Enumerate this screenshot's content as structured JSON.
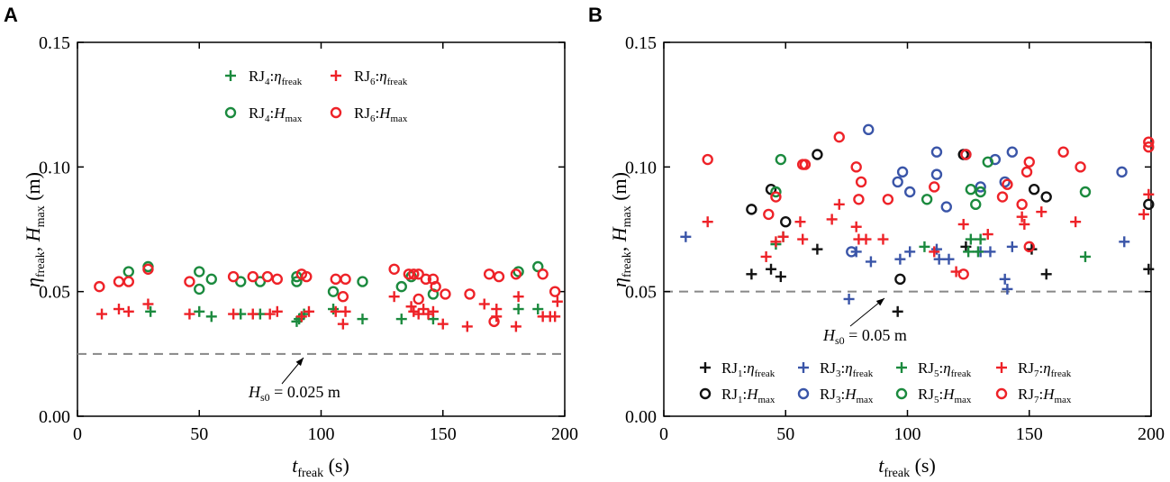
{
  "colors": {
    "RJ1": "#111111",
    "RJ3": "#3a55a8",
    "RJ4": "#1b8a3e",
    "RJ5": "#1b8a3e",
    "RJ6": "#ee2228",
    "RJ7": "#ee2228",
    "threshold": "#888888"
  },
  "chart_data": [
    {
      "type": "scatter",
      "panel_label": "A",
      "xlabel": {
        "var": "t",
        "sub": "freak",
        "unit": " (s)"
      },
      "ylabel": {
        "var1": "η",
        "sub1": "freak",
        "sep": ", ",
        "var2": "H",
        "sub2": "max",
        "unit": " (m)"
      },
      "xlim": [
        0,
        200
      ],
      "ylim": [
        0,
        0.15
      ],
      "xticks": [
        "0",
        "50",
        "100",
        "150",
        "200"
      ],
      "yticks": [
        "0.00",
        "0.05",
        "0.10",
        "0.15"
      ],
      "legend_placement": "top",
      "threshold": {
        "value": 0.025,
        "annotation": {
          "var": "H",
          "sub": "s0",
          "text": " = 0.025 m"
        }
      },
      "series": [
        {
          "name": {
            "base": "RJ",
            "num": "4",
            "sep": ":",
            "var": "η",
            "sub": "freak"
          },
          "color_key": "RJ4",
          "marker": "plus",
          "points": [
            [
              30,
              0.042
            ],
            [
              50,
              0.042
            ],
            [
              55,
              0.04
            ],
            [
              67,
              0.041
            ],
            [
              75,
              0.041
            ],
            [
              90,
              0.038
            ],
            [
              91,
              0.039
            ],
            [
              93,
              0.041
            ],
            [
              105,
              0.043
            ],
            [
              117,
              0.039
            ],
            [
              133,
              0.039
            ],
            [
              146,
              0.039
            ],
            [
              181,
              0.043
            ],
            [
              189,
              0.043
            ]
          ]
        },
        {
          "name": {
            "base": "RJ",
            "num": "6",
            "sep": ":",
            "var": "η",
            "sub": "freak"
          },
          "color_key": "RJ6",
          "marker": "plus",
          "points": [
            [
              10,
              0.041
            ],
            [
              17,
              0.043
            ],
            [
              21,
              0.042
            ],
            [
              29,
              0.045
            ],
            [
              46,
              0.041
            ],
            [
              64,
              0.041
            ],
            [
              72,
              0.041
            ],
            [
              79,
              0.041
            ],
            [
              82,
              0.042
            ],
            [
              92,
              0.04
            ],
            [
              95,
              0.042
            ],
            [
              106,
              0.042
            ],
            [
              109,
              0.037
            ],
            [
              110,
              0.042
            ],
            [
              130,
              0.048
            ],
            [
              137,
              0.044
            ],
            [
              138,
              0.042
            ],
            [
              140,
              0.041
            ],
            [
              142,
              0.043
            ],
            [
              144,
              0.041
            ],
            [
              146,
              0.042
            ],
            [
              150,
              0.037
            ],
            [
              160,
              0.036
            ],
            [
              167,
              0.045
            ],
            [
              172,
              0.043
            ],
            [
              172,
              0.04
            ],
            [
              180,
              0.036
            ],
            [
              181,
              0.048
            ],
            [
              191,
              0.04
            ],
            [
              194,
              0.04
            ],
            [
              196,
              0.04
            ],
            [
              197,
              0.046
            ]
          ]
        },
        {
          "name": {
            "base": "RJ",
            "num": "4",
            "sep": ":",
            "var": "H",
            "sub": "max"
          },
          "color_key": "RJ4",
          "marker": "circle",
          "points": [
            [
              21,
              0.058
            ],
            [
              29,
              0.06
            ],
            [
              50,
              0.058
            ],
            [
              50,
              0.051
            ],
            [
              55,
              0.055
            ],
            [
              67,
              0.054
            ],
            [
              75,
              0.054
            ],
            [
              90,
              0.056
            ],
            [
              90,
              0.054
            ],
            [
              105,
              0.05
            ],
            [
              117,
              0.054
            ],
            [
              133,
              0.052
            ],
            [
              137,
              0.056
            ],
            [
              146,
              0.049
            ],
            [
              181,
              0.058
            ],
            [
              189,
              0.06
            ]
          ]
        },
        {
          "name": {
            "base": "RJ",
            "num": "6",
            "sep": ":",
            "var": "H",
            "sub": "max"
          },
          "color_key": "RJ6",
          "marker": "circle",
          "points": [
            [
              9,
              0.052
            ],
            [
              17,
              0.054
            ],
            [
              21,
              0.054
            ],
            [
              29,
              0.059
            ],
            [
              46,
              0.054
            ],
            [
              64,
              0.056
            ],
            [
              72,
              0.056
            ],
            [
              78,
              0.056
            ],
            [
              82,
              0.055
            ],
            [
              92,
              0.057
            ],
            [
              94,
              0.056
            ],
            [
              106,
              0.055
            ],
            [
              109,
              0.048
            ],
            [
              110,
              0.055
            ],
            [
              130,
              0.059
            ],
            [
              136,
              0.057
            ],
            [
              138,
              0.057
            ],
            [
              140,
              0.047
            ],
            [
              140,
              0.057
            ],
            [
              143,
              0.055
            ],
            [
              146,
              0.055
            ],
            [
              147,
              0.052
            ],
            [
              151,
              0.049
            ],
            [
              161,
              0.049
            ],
            [
              169,
              0.057
            ],
            [
              171,
              0.038
            ],
            [
              173,
              0.056
            ],
            [
              180,
              0.057
            ],
            [
              191,
              0.057
            ],
            [
              196,
              0.05
            ]
          ]
        }
      ]
    },
    {
      "type": "scatter",
      "panel_label": "B",
      "xlabel": {
        "var": "t",
        "sub": "freak",
        "unit": " (s)"
      },
      "ylabel": {
        "var1": "η",
        "sub1": "freak",
        "sep": ", ",
        "var2": "H",
        "sub2": "max",
        "unit": " (m)"
      },
      "xlim": [
        0,
        200
      ],
      "ylim": [
        0,
        0.15
      ],
      "xticks": [
        "0",
        "50",
        "100",
        "150",
        "200"
      ],
      "yticks": [
        "0.00",
        "0.05",
        "0.10",
        "0.15"
      ],
      "legend_placement": "bottom",
      "threshold": {
        "value": 0.05,
        "annotation": {
          "var": "H",
          "sub": "s0",
          "text": " = 0.05 m"
        }
      },
      "series": [
        {
          "name": {
            "base": "RJ",
            "num": "1",
            "sep": ":",
            "var": "η",
            "sub": "freak"
          },
          "color_key": "RJ1",
          "marker": "plus",
          "points": [
            [
              36,
              0.057
            ],
            [
              44,
              0.059
            ],
            [
              48,
              0.056
            ],
            [
              63,
              0.067
            ],
            [
              96,
              0.042
            ],
            [
              124,
              0.068
            ],
            [
              151,
              0.067
            ],
            [
              157,
              0.057
            ],
            [
              199,
              0.059
            ]
          ]
        },
        {
          "name": {
            "base": "RJ",
            "num": "3",
            "sep": ":",
            "var": "η",
            "sub": "freak"
          },
          "color_key": "RJ3",
          "marker": "plus",
          "points": [
            [
              9,
              0.072
            ],
            [
              76,
              0.047
            ],
            [
              79,
              0.066
            ],
            [
              85,
              0.062
            ],
            [
              97,
              0.063
            ],
            [
              101,
              0.066
            ],
            [
              112,
              0.067
            ],
            [
              113,
              0.063
            ],
            [
              117,
              0.063
            ],
            [
              130,
              0.066
            ],
            [
              134,
              0.066
            ],
            [
              140,
              0.055
            ],
            [
              141,
              0.051
            ],
            [
              143,
              0.068
            ],
            [
              189,
              0.07
            ]
          ]
        },
        {
          "name": {
            "base": "RJ",
            "num": "5",
            "sep": ":",
            "var": "η",
            "sub": "freak"
          },
          "color_key": "RJ5",
          "marker": "plus",
          "points": [
            [
              46,
              0.069
            ],
            [
              49,
              0.072
            ],
            [
              107,
              0.068
            ],
            [
              126,
              0.071
            ],
            [
              130,
              0.071
            ],
            [
              125,
              0.066
            ],
            [
              129,
              0.066
            ],
            [
              173,
              0.064
            ]
          ]
        },
        {
          "name": {
            "base": "RJ",
            "num": "7",
            "sep": ":",
            "var": "η",
            "sub": "freak"
          },
          "color_key": "RJ7",
          "marker": "plus",
          "points": [
            [
              18,
              0.078
            ],
            [
              42,
              0.064
            ],
            [
              46,
              0.07
            ],
            [
              49,
              0.072
            ],
            [
              56,
              0.078
            ],
            [
              57,
              0.071
            ],
            [
              69,
              0.079
            ],
            [
              72,
              0.085
            ],
            [
              79,
              0.076
            ],
            [
              80,
              0.071
            ],
            [
              83,
              0.071
            ],
            [
              90,
              0.071
            ],
            [
              111,
              0.066
            ],
            [
              120,
              0.058
            ],
            [
              123,
              0.077
            ],
            [
              133,
              0.073
            ],
            [
              147,
              0.08
            ],
            [
              148,
              0.077
            ],
            [
              155,
              0.082
            ],
            [
              169,
              0.078
            ],
            [
              197,
              0.081
            ],
            [
              199,
              0.089
            ]
          ]
        },
        {
          "name": {
            "base": "RJ",
            "num": "1",
            "sep": ":",
            "var": "H",
            "sub": "max"
          },
          "color_key": "RJ1",
          "marker": "circle",
          "points": [
            [
              36,
              0.083
            ],
            [
              44,
              0.091
            ],
            [
              50,
              0.078
            ],
            [
              63,
              0.105
            ],
            [
              97,
              0.055
            ],
            [
              123,
              0.105
            ],
            [
              152,
              0.091
            ],
            [
              157,
              0.088
            ],
            [
              199,
              0.085
            ]
          ]
        },
        {
          "name": {
            "base": "RJ",
            "num": "3",
            "sep": ":",
            "var": "H",
            "sub": "max"
          },
          "color_key": "RJ3",
          "marker": "circle",
          "points": [
            [
              77,
              0.066
            ],
            [
              84,
              0.115
            ],
            [
              96,
              0.094
            ],
            [
              98,
              0.098
            ],
            [
              101,
              0.09
            ],
            [
              112,
              0.097
            ],
            [
              112,
              0.106
            ],
            [
              116,
              0.084
            ],
            [
              124,
              0.105
            ],
            [
              130,
              0.092
            ],
            [
              136,
              0.103
            ],
            [
              140,
              0.094
            ],
            [
              143,
              0.106
            ],
            [
              188,
              0.098
            ]
          ]
        },
        {
          "name": {
            "base": "RJ",
            "num": "5",
            "sep": ":",
            "var": "H",
            "sub": "max"
          },
          "color_key": "RJ5",
          "marker": "circle",
          "points": [
            [
              48,
              0.103
            ],
            [
              46,
              0.09
            ],
            [
              108,
              0.087
            ],
            [
              126,
              0.091
            ],
            [
              130,
              0.09
            ],
            [
              128,
              0.085
            ],
            [
              133,
              0.102
            ],
            [
              173,
              0.09
            ]
          ]
        },
        {
          "name": {
            "base": "RJ",
            "num": "7",
            "sep": ":",
            "var": "H",
            "sub": "max"
          },
          "color_key": "RJ7",
          "marker": "circle",
          "points": [
            [
              18,
              0.103
            ],
            [
              43,
              0.081
            ],
            [
              46,
              0.088
            ],
            [
              57,
              0.101
            ],
            [
              58,
              0.101
            ],
            [
              72,
              0.112
            ],
            [
              79,
              0.1
            ],
            [
              81,
              0.094
            ],
            [
              80,
              0.087
            ],
            [
              92,
              0.087
            ],
            [
              111,
              0.092
            ],
            [
              124,
              0.105
            ],
            [
              123,
              0.057
            ],
            [
              139,
              0.088
            ],
            [
              141,
              0.093
            ],
            [
              149,
              0.098
            ],
            [
              150,
              0.102
            ],
            [
              147,
              0.085
            ],
            [
              150,
              0.068
            ],
            [
              164,
              0.106
            ],
            [
              171,
              0.1
            ],
            [
              199,
              0.108
            ],
            [
              199,
              0.11
            ]
          ]
        }
      ]
    }
  ]
}
